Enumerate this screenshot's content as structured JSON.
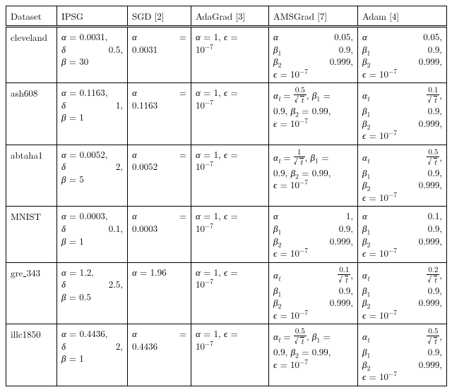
{
  "columns": [
    "Dataset",
    "IPSG",
    "SGD [2]",
    "AdaGrad [3]",
    "AMSGrad [7]",
    "Adam [4]"
  ],
  "datasets": [
    "cleveland",
    "ash608",
    "abtaha1",
    "MNIST",
    "gre_343",
    "illc1850"
  ],
  "ipsg": {
    "cleveland": {
      "alpha": "0.0031",
      "delta": "0.5",
      "beta": "30"
    },
    "ash608": {
      "alpha": "0.1163",
      "delta": "1",
      "beta": "1"
    },
    "abtaha1": {
      "alpha": "0.0052",
      "delta": "2",
      "beta": "5"
    },
    "MNIST": {
      "alpha": "0.0003",
      "delta": "0.1",
      "beta": "1"
    },
    "gre_343": {
      "alpha": "1.2",
      "delta": "2.5",
      "beta": "0.5"
    },
    "illc1850": {
      "alpha": "0.4436",
      "delta": "2",
      "beta": "1"
    }
  },
  "sgd": {
    "cleveland": "0.0031",
    "ash608": "0.1163",
    "abtaha1": "0.0052",
    "MNIST": "0.0003",
    "gre_343": "1.96",
    "illc1850": "0.4436"
  },
  "adagrad": {
    "alpha": "1",
    "eps": "10",
    "epsExp": "−7"
  },
  "amsgrad": {
    "cleveland": {
      "mode": "const",
      "alpha": "0.05",
      "beta1": "0.9",
      "beta2": "0.999",
      "eps": "10",
      "epsExp": "−7"
    },
    "ash608": {
      "mode": "frac",
      "num": "0.5",
      "beta1": "0.9",
      "beta2": "0.99",
      "eps": "10",
      "epsExp": "−7"
    },
    "abtaha1": {
      "mode": "frac",
      "num": "1",
      "beta1": "0.9",
      "beta2": "0.99",
      "eps": "10",
      "epsExp": "−7"
    },
    "MNIST": {
      "mode": "const",
      "alpha": "1",
      "beta1": "0.9",
      "beta2": "0.999",
      "eps": "10",
      "epsExp": "−7"
    },
    "gre_343": {
      "mode": "fracbeta",
      "num": "0.1",
      "beta1": "0.9",
      "beta2": "0.999",
      "eps": "10",
      "epsExp": "−7"
    },
    "illc1850": {
      "mode": "frac",
      "num": "0.5",
      "beta1": "0.9",
      "beta2": "0.99",
      "eps": "10",
      "epsExp": "−7"
    }
  },
  "adam": {
    "cleveland": {
      "mode": "const",
      "alpha": "0.05",
      "beta1": "0.9",
      "beta2": "0.999",
      "eps": "10",
      "epsExp": "−7"
    },
    "ash608": {
      "mode": "fracbeta",
      "num": "0.1",
      "beta1": "0.9",
      "beta2": "0.999",
      "eps": "10",
      "epsExp": "−7"
    },
    "abtaha1": {
      "mode": "fracbeta",
      "num": "0.5",
      "beta1": "0.9",
      "beta2": "0.999",
      "eps": "10",
      "epsExp": "−7"
    },
    "MNIST": {
      "mode": "const",
      "alpha": "0.1",
      "beta1": "0.9",
      "beta2": "0.999",
      "eps": "10",
      "epsExp": "−7"
    },
    "gre_343": {
      "mode": "fracbeta",
      "num": "0.2",
      "beta1": "0.9",
      "beta2": "0.999",
      "eps": "10",
      "epsExp": "−7"
    },
    "illc1850": {
      "mode": "fracbeta",
      "num": "0.5",
      "beta1": "0.9",
      "beta2": "0.999",
      "eps": "10",
      "epsExp": "−7"
    }
  },
  "sym": {
    "alpha": "α",
    "alphaT": "α",
    "beta": "β",
    "beta1": "β",
    "beta2": "β",
    "delta": "δ",
    "eps": "ϵ",
    "t": "t",
    "eq": "=",
    "comma": ","
  }
}
